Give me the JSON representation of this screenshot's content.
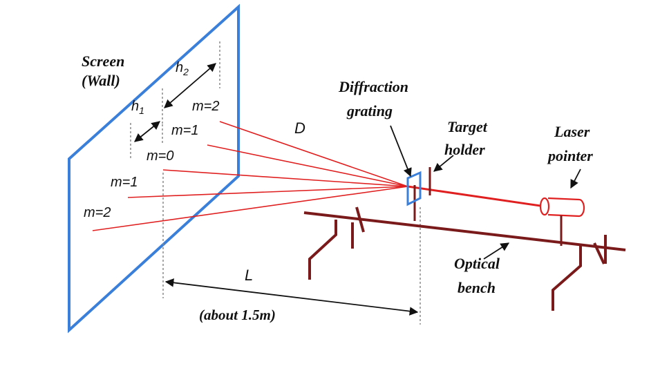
{
  "labels": {
    "screen": "Screen",
    "wall": "(Wall)",
    "h2": "h",
    "h2_sub": "2",
    "h1": "h",
    "h1_sub": "1",
    "m2_top": "m=2",
    "m1_top": "m=1",
    "m0": "m=0",
    "m1_bottom": "m=1",
    "m2_bottom": "m=2",
    "D": "D",
    "diffraction": "Diffraction",
    "grating": "grating",
    "target": "Target",
    "holder": "holder",
    "laser": "Laser",
    "pointer": "pointer",
    "optical": "Optical",
    "bench": "bench",
    "L": "L",
    "about": "(about 1.5m)"
  },
  "colors": {
    "screen": "#3a7fd9",
    "beam": "#e02020",
    "bench": "#7a1a1a",
    "text": "#111111",
    "dashed": "#888888"
  }
}
